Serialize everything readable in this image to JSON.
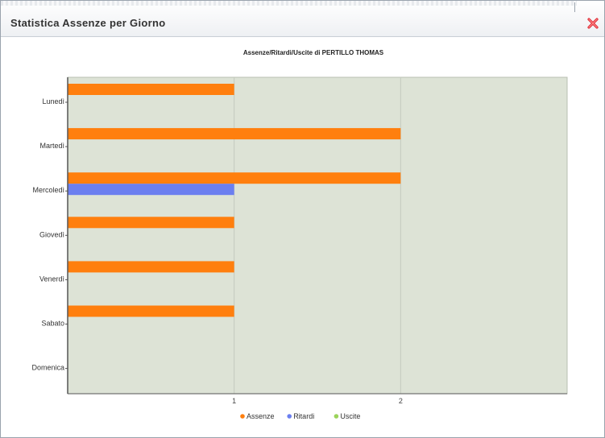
{
  "dialog": {
    "title": "Statistica Assenze per Giorno",
    "close_icon": "close-x-icon",
    "close_color": "#e0323c"
  },
  "chart_data": {
    "type": "bar",
    "orientation": "horizontal",
    "title": "Assenze/Ritardi/Uscite di PERTILLO THOMAS",
    "categories": [
      "Lunedì",
      "Martedì",
      "Mercoledì",
      "Giovedì",
      "Venerdì",
      "Sabato",
      "Domenica"
    ],
    "series": [
      {
        "name": "Assenze",
        "color": "#ff7f0e",
        "values": [
          1,
          2,
          2,
          1,
          1,
          1,
          0
        ]
      },
      {
        "name": "Ritardi",
        "color": "#6b7ff0",
        "values": [
          0,
          0,
          1,
          0,
          0,
          0,
          0
        ]
      },
      {
        "name": "Uscite",
        "color": "#9bd35a",
        "values": [
          0,
          0,
          0,
          0,
          0,
          0,
          0
        ]
      }
    ],
    "x_ticks": [
      "1",
      "2"
    ],
    "xlim": [
      0,
      3
    ],
    "grid": true,
    "legend": "bottom",
    "plot_background": "#dde3d6"
  }
}
